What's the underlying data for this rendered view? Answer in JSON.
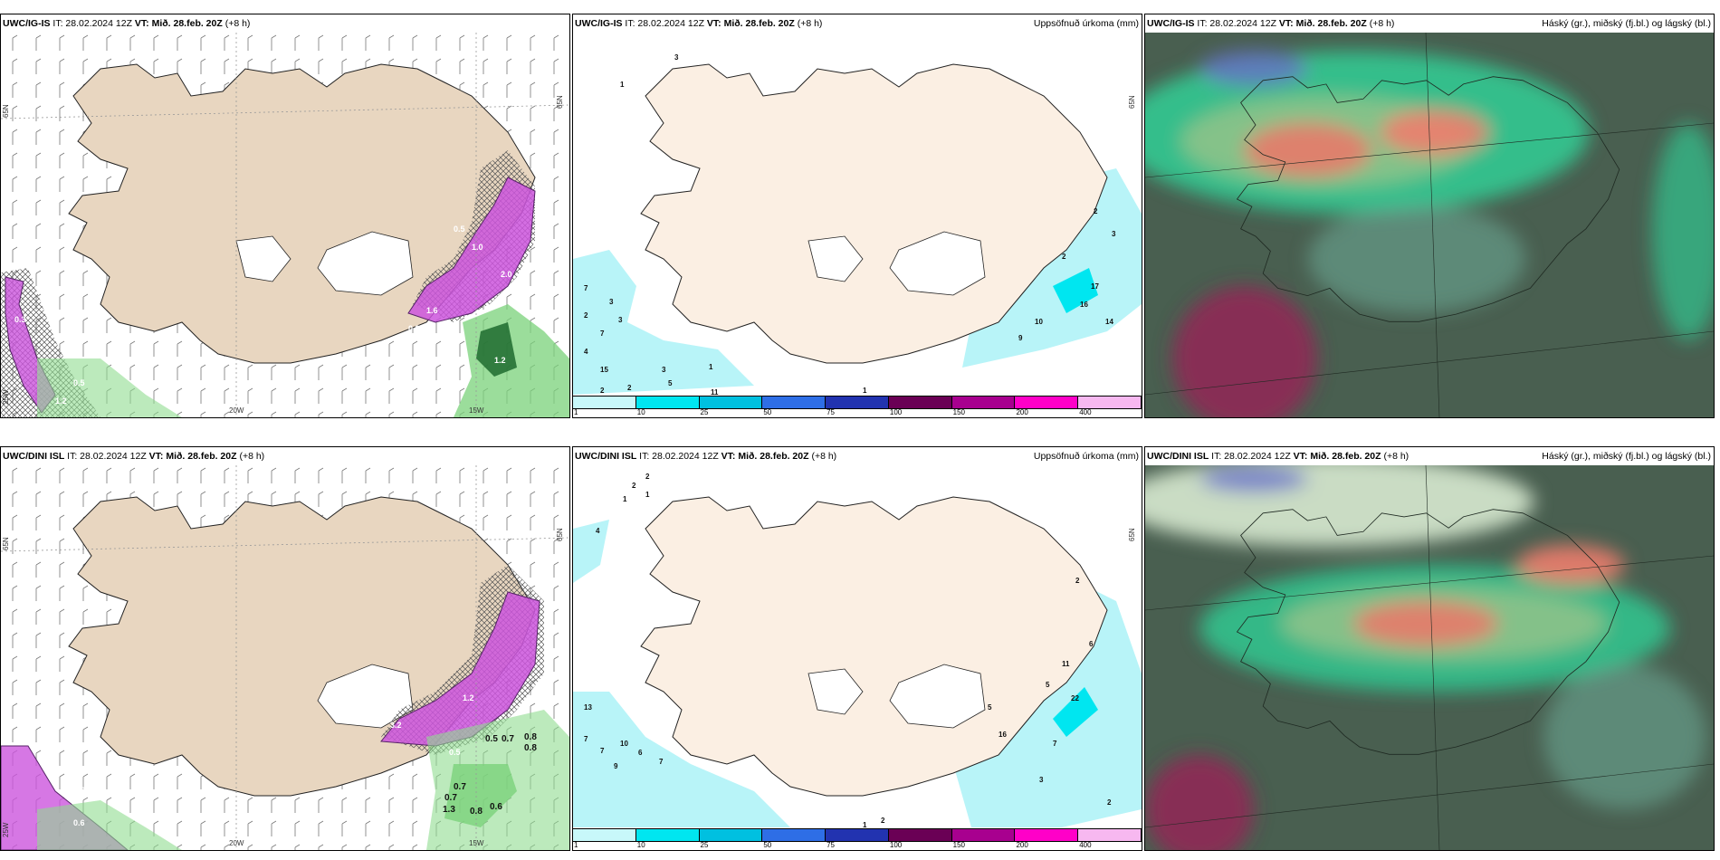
{
  "panels": [
    {
      "id": "igis-wind",
      "model": "UWC/IG-IS",
      "issue": "IT: 28.02.2024 12Z",
      "valid_prefix": "VT:",
      "valid": "Mið. 28.feb. 20Z",
      "lead": "(+8 h)",
      "right_title": "",
      "axis_labels": [
        "65N",
        "65N",
        "25W",
        "20W",
        "15W"
      ],
      "values": [
        "0.5",
        "1.0",
        "1.6",
        "2.0",
        "1.2",
        "0.3",
        "0.5",
        "1.2",
        "0.3"
      ]
    },
    {
      "id": "igis-precip",
      "model": "UWC/IG-IS",
      "issue": "IT: 28.02.2024 12Z",
      "valid_prefix": "VT:",
      "valid": "Mið. 28.feb. 20Z",
      "lead": "(+8 h)",
      "right_title": "Uppsöfnuð úrkoma (mm)",
      "axis_labels": [
        "65N"
      ],
      "values": [
        "1",
        "3",
        "7",
        "3",
        "2",
        "3",
        "7",
        "4",
        "15",
        "2",
        "2",
        "3",
        "5",
        "1",
        "11",
        "2",
        "2",
        "3",
        "17",
        "16",
        "10",
        "9",
        "14",
        "1"
      ]
    },
    {
      "id": "igis-clouds",
      "model": "UWC/IG-IS",
      "issue": "IT: 28.02.2024 12Z",
      "valid_prefix": "VT:",
      "valid": "Mið. 28.feb. 20Z",
      "lead": "(+8 h)",
      "right_title": "Háský (gr.), miðský (fj.bl.) og lágský (bl.)",
      "axis_labels": [],
      "values": []
    },
    {
      "id": "dini-wind",
      "model": "UWC/DINI ISL",
      "issue": "IT: 28.02.2024 12Z",
      "valid_prefix": "VT:",
      "valid": "Mið. 28.feb. 20Z",
      "lead": "(+8 h)",
      "right_title": "",
      "axis_labels": [
        "65N",
        "65N",
        "25W",
        "20W",
        "15W"
      ],
      "values": [
        "0.5",
        "0.7",
        "0.8",
        "0.8",
        "0.7",
        "0.7",
        "1.3",
        "0.8",
        "0.6",
        "0.4",
        "0.6",
        "3.2",
        "1.2",
        "0.5"
      ]
    },
    {
      "id": "dini-precip",
      "model": "UWC/DINI ISL",
      "issue": "IT: 28.02.2024 12Z",
      "valid_prefix": "VT:",
      "valid": "Mið. 28.feb. 20Z",
      "lead": "(+8 h)",
      "right_title": "Uppsöfnuð úrkoma (mm)",
      "axis_labels": [
        "65N"
      ],
      "values": [
        "2",
        "2",
        "1",
        "1",
        "4",
        "13",
        "7",
        "7",
        "10",
        "6",
        "9",
        "7",
        "2",
        "2",
        "6",
        "11",
        "5",
        "22",
        "5",
        "16",
        "7",
        "3",
        "2",
        "1"
      ]
    },
    {
      "id": "dini-clouds",
      "model": "UWC/DINI ISL",
      "issue": "IT: 28.02.2024 12Z",
      "valid_prefix": "VT:",
      "valid": "Mið. 28.feb. 20Z",
      "lead": "(+8 h)",
      "right_title": "Háský (gr.), miðský (fj.bl.) og lágský (bl.)",
      "axis_labels": [],
      "values": []
    }
  ],
  "colorbar": {
    "labels": [
      "1",
      "10",
      "25",
      "50",
      "75",
      "100",
      "150",
      "200",
      "400"
    ],
    "colors": [
      "#c8f8fa",
      "#00e6f0",
      "#00c0e0",
      "#2e6ee6",
      "#2233b0",
      "#6a0055",
      "#a8008f",
      "#ff00c8",
      "#f7b8f0"
    ]
  },
  "colors": {
    "land": "#e8d6c0",
    "land_light": "#fbefe3",
    "water": "#ffffff",
    "precip_blue": "#b8f4f8",
    "snow_purple": "#cc55dd",
    "rain_green": "#7ad27a",
    "cloud_dark": "#495f50",
    "cloud_green": "#2fd69a"
  }
}
